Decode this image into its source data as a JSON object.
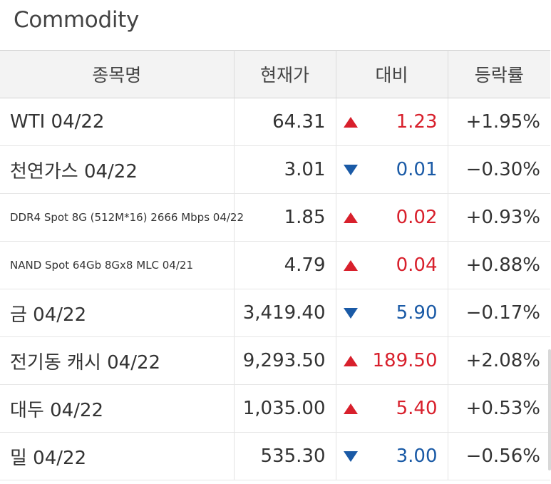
{
  "section": {
    "title": "Commodity"
  },
  "table": {
    "headers": {
      "name": "종목명",
      "price": "현재가",
      "change": "대비",
      "rate": "등락률"
    },
    "rows": [
      {
        "name": "WTI 04/22",
        "price": "64.31",
        "direction": "up",
        "change": "1.23",
        "rate": "+1.95%"
      },
      {
        "name": "천연가스 04/22",
        "price": "3.01",
        "direction": "down",
        "change": "0.01",
        "rate": "−0.30%"
      },
      {
        "name": "DDR4 Spot 8G (512M*16) 2666 Mbps 04/22",
        "price": "1.85",
        "direction": "up",
        "change": "0.02",
        "rate": "+0.93%"
      },
      {
        "name": "NAND Spot 64Gb 8Gx8 MLC 04/21",
        "price": "4.79",
        "direction": "up",
        "change": "0.04",
        "rate": "+0.88%"
      },
      {
        "name": "금 04/22",
        "price": "3,419.40",
        "direction": "down",
        "change": "5.90",
        "rate": "−0.17%"
      },
      {
        "name": "전기동 캐시 04/22",
        "price": "9,293.50",
        "direction": "up",
        "change": "189.50",
        "rate": "+2.08%"
      },
      {
        "name": "대두 04/22",
        "price": "1,035.00",
        "direction": "up",
        "change": "5.40",
        "rate": "+0.53%"
      },
      {
        "name": "밀 04/22",
        "price": "535.30",
        "direction": "down",
        "change": "3.00",
        "rate": "−0.56%"
      }
    ]
  },
  "colors": {
    "up": "#d8202c",
    "down": "#1a5aa6",
    "header_bg": "#f3f3f3"
  },
  "icons": {
    "up": "triangle-up-icon",
    "down": "triangle-down-icon"
  }
}
